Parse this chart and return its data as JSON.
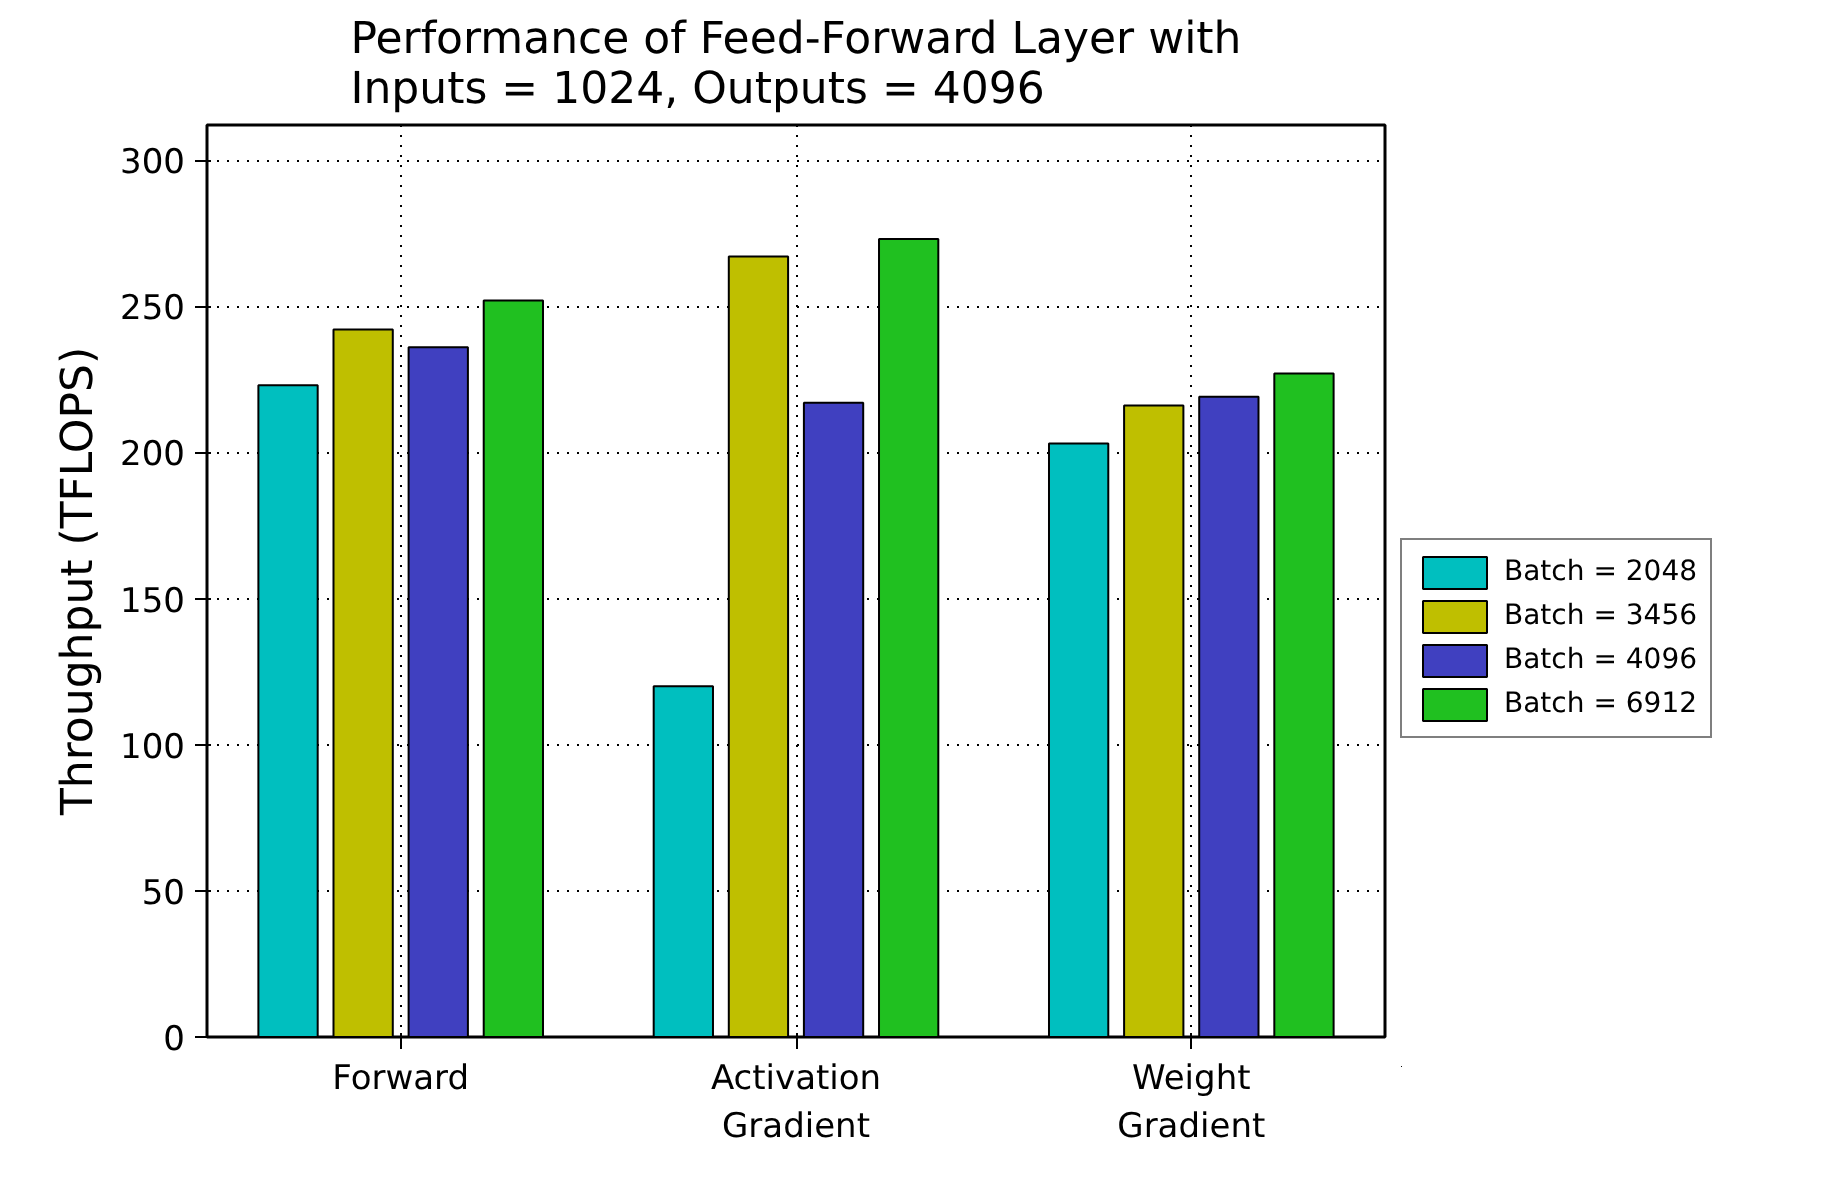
{
  "chart_data": {
    "type": "bar",
    "title": "Performance of Feed-Forward Layer with\nInputs = 1024, Outputs = 4096",
    "ylabel": "Throughput (TFLOPS)",
    "categories": [
      "Forward",
      "Activation\nGradient",
      "Weight\nGradient"
    ],
    "series": [
      {
        "name": "Batch = 2048",
        "color": "#00bfbf",
        "values": [
          223,
          120,
          203
        ]
      },
      {
        "name": "Batch = 3456",
        "color": "#bfbf00",
        "values": [
          242,
          267,
          216
        ]
      },
      {
        "name": "Batch = 4096",
        "color": "#4040c0",
        "values": [
          236,
          217,
          219
        ]
      },
      {
        "name": "Batch = 6912",
        "color": "#20c020",
        "values": [
          252,
          273,
          227
        ]
      }
    ],
    "ylim": [
      0,
      312
    ],
    "yticks": [
      0,
      50,
      100,
      150,
      200,
      250,
      300
    ],
    "grid": true,
    "legend": "right"
  }
}
